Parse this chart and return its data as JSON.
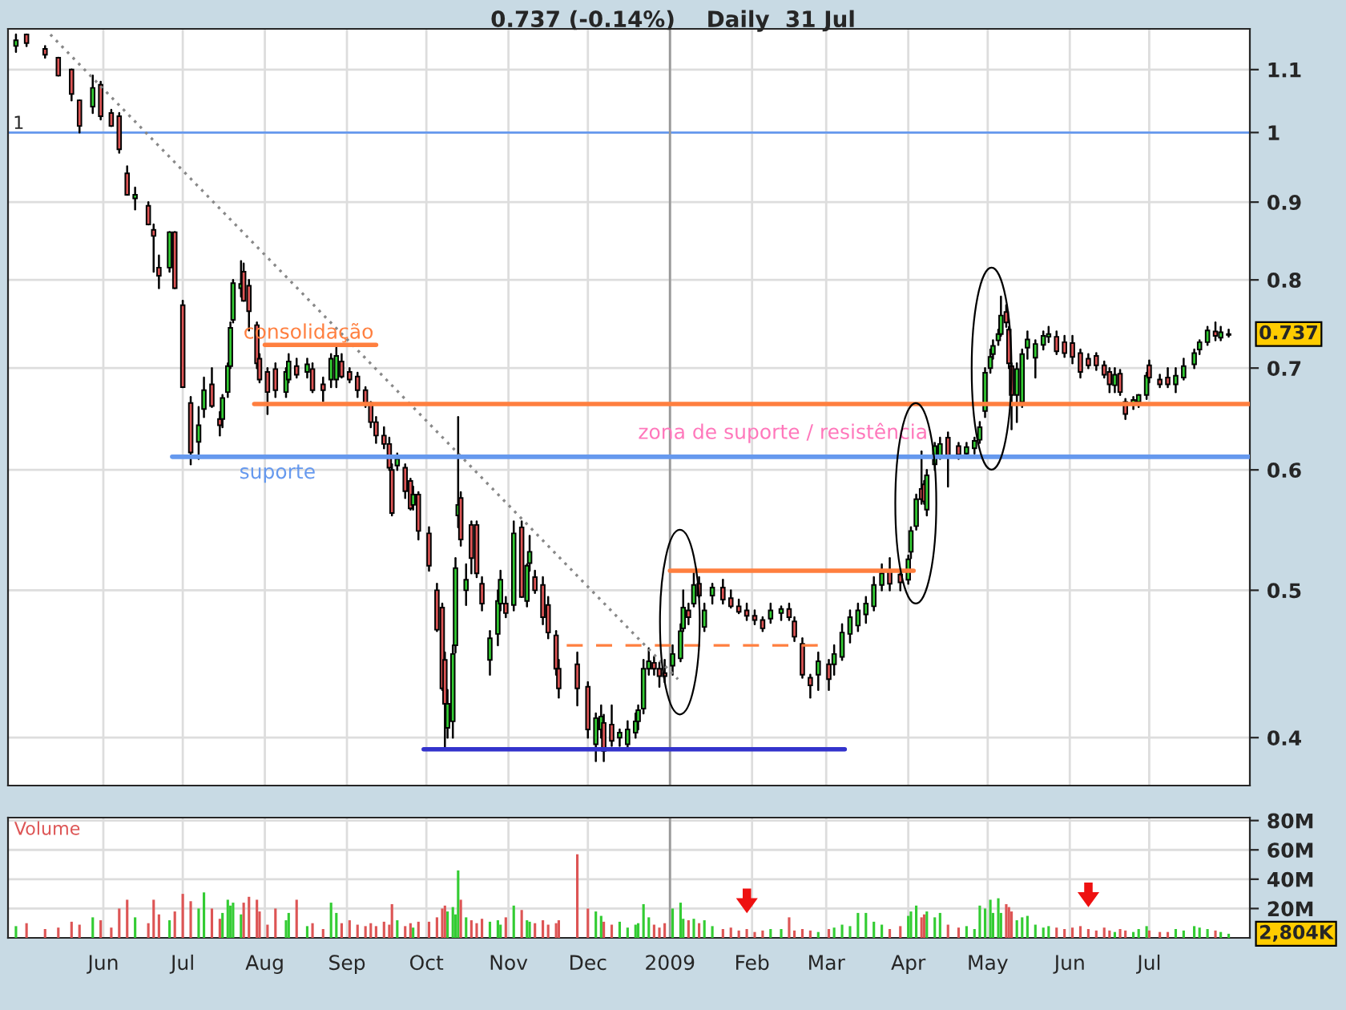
{
  "chart_data": [
    {
      "type": "candlestick",
      "title": "0.737 (-0.14%)    Daily  31 Jul",
      "x": [
        "2008-04-29",
        "2008-05-03",
        "2008-05-10",
        "2008-05-15",
        "2008-05-20",
        "2008-05-23",
        "2008-05-28",
        "2008-05-31",
        "2008-06-04",
        "2008-06-07",
        "2008-06-10",
        "2008-06-13",
        "2008-06-18",
        "2008-06-20",
        "2008-06-22",
        "2008-06-26",
        "2008-06-28",
        "2008-07-01",
        "2008-07-04",
        "2008-07-07",
        "2008-07-09",
        "2008-07-12",
        "2008-07-15",
        "2008-07-16",
        "2008-07-18",
        "2008-07-19",
        "2008-07-20",
        "2008-07-23",
        "2008-07-24",
        "2008-07-26",
        "2008-07-29",
        "2008-07-30",
        "2008-08-02",
        "2008-08-05",
        "2008-08-09",
        "2008-08-10",
        "2008-08-13",
        "2008-08-17",
        "2008-08-19",
        "2008-08-23",
        "2008-08-26",
        "2008-08-28",
        "2008-08-30",
        "2008-09-02",
        "2008-09-05",
        "2008-09-08",
        "2008-09-10",
        "2008-09-12",
        "2008-09-15",
        "2008-09-17",
        "2008-09-18",
        "2008-09-20",
        "2008-09-23",
        "2008-09-25",
        "2008-09-26",
        "2008-09-28",
        "2008-10-02",
        "2008-10-05",
        "2008-10-07",
        "2008-10-08",
        "2008-10-09",
        "2008-10-11",
        "2008-10-12",
        "2008-10-13",
        "2008-10-14",
        "2008-10-16",
        "2008-10-18",
        "2008-10-20",
        "2008-10-22",
        "2008-10-25",
        "2008-10-28",
        "2008-10-29",
        "2008-10-31",
        "2008-11-03",
        "2008-11-06",
        "2008-11-08",
        "2008-11-09",
        "2008-11-11",
        "2008-11-14",
        "2008-11-16",
        "2008-11-19",
        "2008-11-20",
        "2008-11-27",
        "2008-12-01",
        "2008-12-04",
        "2008-12-06",
        "2008-12-07",
        "2008-12-10",
        "2008-12-13",
        "2008-12-16",
        "2008-12-19",
        "2008-12-20",
        "2008-12-22",
        "2008-12-24",
        "2008-12-26",
        "2008-12-28",
        "2008-12-30",
        "2009-01-02",
        "2009-01-05",
        "2009-01-06",
        "2009-01-08",
        "2009-01-10",
        "2009-01-12",
        "2009-01-14",
        "2009-01-17",
        "2009-01-21",
        "2009-01-24",
        "2009-01-27",
        "2009-01-30",
        "2009-02-02",
        "2009-02-05",
        "2009-02-08",
        "2009-02-12",
        "2009-02-15",
        "2009-02-17",
        "2009-02-20",
        "2009-02-23",
        "2009-02-26",
        "2009-03-02",
        "2009-03-04",
        "2009-03-07",
        "2009-03-10",
        "2009-03-13",
        "2009-03-16",
        "2009-03-19",
        "2009-03-22",
        "2009-03-25",
        "2009-03-29",
        "2009-04-01",
        "2009-04-02",
        "2009-04-04",
        "2009-04-06",
        "2009-04-07",
        "2009-04-08",
        "2009-04-11",
        "2009-04-13",
        "2009-04-16",
        "2009-04-20",
        "2009-04-23",
        "2009-04-26",
        "2009-04-28",
        "2009-04-30",
        "2009-05-02",
        "2009-05-03",
        "2009-05-05",
        "2009-05-06",
        "2009-05-08",
        "2009-05-09",
        "2009-05-10",
        "2009-05-12",
        "2009-05-14",
        "2009-05-16",
        "2009-05-19",
        "2009-05-22",
        "2009-05-24",
        "2009-05-27",
        "2009-05-30",
        "2009-06-02",
        "2009-06-05",
        "2009-06-08",
        "2009-06-11",
        "2009-06-14",
        "2009-06-16",
        "2009-06-18",
        "2009-06-20",
        "2009-06-22",
        "2009-06-25",
        "2009-06-27",
        "2009-06-30",
        "2009-07-01",
        "2009-07-05",
        "2009-07-08",
        "2009-07-11",
        "2009-07-14",
        "2009-07-18",
        "2009-07-20",
        "2009-07-23",
        "2009-07-26",
        "2009-07-28",
        "2009-07-31"
      ],
      "ohlc": [
        [
          1.14,
          1.16,
          1.13,
          1.15
        ],
        [
          1.16,
          1.16,
          1.14,
          1.145
        ],
        [
          1.135,
          1.14,
          1.12,
          1.125
        ],
        [
          1.12,
          1.12,
          1.09,
          1.09
        ],
        [
          1.1,
          1.1,
          1.05,
          1.06
        ],
        [
          1.05,
          1.05,
          1.0,
          1.01
        ],
        [
          1.04,
          1.09,
          1.03,
          1.07
        ],
        [
          1.075,
          1.08,
          1.02,
          1.025
        ],
        [
          1.03,
          1.035,
          1.01,
          1.01
        ],
        [
          1.025,
          1.03,
          0.97,
          0.975
        ],
        [
          0.94,
          0.95,
          0.91,
          0.91
        ],
        [
          0.905,
          0.92,
          0.89,
          0.91
        ],
        [
          0.895,
          0.9,
          0.87,
          0.87
        ],
        [
          0.863,
          0.87,
          0.81,
          0.855
        ],
        [
          0.815,
          0.83,
          0.79,
          0.805
        ],
        [
          0.815,
          0.86,
          0.81,
          0.86
        ],
        [
          0.86,
          0.86,
          0.79,
          0.79
        ],
        [
          0.77,
          0.775,
          0.68,
          0.68
        ],
        [
          0.664,
          0.67,
          0.605,
          0.616
        ],
        [
          0.626,
          0.66,
          0.61,
          0.642
        ],
        [
          0.658,
          0.69,
          0.65,
          0.677
        ],
        [
          0.683,
          0.7,
          0.66,
          0.661
        ],
        [
          0.648,
          0.655,
          0.632,
          0.642
        ],
        [
          0.648,
          0.672,
          0.64,
          0.669
        ],
        [
          0.675,
          0.705,
          0.67,
          0.702
        ],
        [
          0.702,
          0.75,
          0.7,
          0.744
        ],
        [
          0.753,
          0.8,
          0.75,
          0.796
        ],
        [
          0.79,
          0.823,
          0.78,
          0.795
        ],
        [
          0.81,
          0.82,
          0.775,
          0.775
        ],
        [
          0.793,
          0.8,
          0.741,
          0.763
        ],
        [
          0.747,
          0.75,
          0.7,
          0.705
        ],
        [
          0.71,
          0.715,
          0.685,
          0.688
        ],
        [
          0.696,
          0.7,
          0.653,
          0.675
        ],
        [
          0.699,
          0.705,
          0.67,
          0.677
        ],
        [
          0.675,
          0.7,
          0.67,
          0.696
        ],
        [
          0.688,
          0.715,
          0.685,
          0.707
        ],
        [
          0.702,
          0.71,
          0.69,
          0.693
        ],
        [
          0.696,
          0.71,
          0.69,
          0.704
        ],
        [
          0.699,
          0.705,
          0.675,
          0.677
        ],
        [
          0.683,
          0.69,
          0.666,
          0.677
        ],
        [
          0.688,
          0.715,
          0.68,
          0.71
        ],
        [
          0.688,
          0.722,
          0.68,
          0.713
        ],
        [
          0.707,
          0.715,
          0.69,
          0.691
        ],
        [
          0.696,
          0.7,
          0.685,
          0.688
        ],
        [
          0.691,
          0.695,
          0.67,
          0.677
        ],
        [
          0.677,
          0.68,
          0.66,
          0.664
        ],
        [
          0.664,
          0.665,
          0.64,
          0.645
        ],
        [
          0.645,
          0.65,
          0.625,
          0.632
        ],
        [
          0.632,
          0.64,
          0.62,
          0.624
        ],
        [
          0.624,
          0.63,
          0.6,
          0.602
        ],
        [
          0.6,
          0.605,
          0.56,
          0.562
        ],
        [
          0.604,
          0.615,
          0.6,
          0.61
        ],
        [
          0.602,
          0.605,
          0.575,
          0.581
        ],
        [
          0.59,
          0.592,
          0.565,
          0.566
        ],
        [
          0.569,
          0.585,
          0.565,
          0.578
        ],
        [
          0.578,
          0.58,
          0.54,
          0.547
        ],
        [
          0.545,
          0.55,
          0.515,
          0.519
        ],
        [
          0.5,
          0.505,
          0.47,
          0.471
        ],
        [
          0.487,
          0.49,
          0.43,
          0.431
        ],
        [
          0.45,
          0.455,
          0.394,
          0.421
        ],
        [
          0.406,
          0.43,
          0.4,
          0.421
        ],
        [
          0.41,
          0.46,
          0.4,
          0.454
        ],
        [
          0.46,
          0.525,
          0.455,
          0.517
        ],
        [
          0.56,
          0.65,
          0.55,
          0.569
        ],
        [
          0.575,
          0.58,
          0.535,
          0.54
        ],
        [
          0.5,
          0.52,
          0.489,
          0.508
        ],
        [
          0.552,
          0.555,
          0.513,
          0.525
        ],
        [
          0.552,
          0.555,
          0.51,
          0.513
        ],
        [
          0.505,
          0.51,
          0.485,
          0.49
        ],
        [
          0.45,
          0.47,
          0.44,
          0.465
        ],
        [
          0.468,
          0.5,
          0.46,
          0.492
        ],
        [
          0.49,
          0.515,
          0.485,
          0.508
        ],
        [
          0.49,
          0.495,
          0.48,
          0.483
        ],
        [
          0.489,
          0.555,
          0.485,
          0.545
        ],
        [
          0.55,
          0.555,
          0.495,
          0.495
        ],
        [
          0.492,
          0.52,
          0.488,
          0.519
        ],
        [
          0.521,
          0.543,
          0.515,
          0.53
        ],
        [
          0.51,
          0.515,
          0.498,
          0.5
        ],
        [
          0.504,
          0.51,
          0.475,
          0.48
        ],
        [
          0.489,
          0.495,
          0.465,
          0.469
        ],
        [
          0.467,
          0.47,
          0.44,
          0.444
        ],
        [
          0.444,
          0.45,
          0.425,
          0.431
        ],
        [
          0.447,
          0.455,
          0.42,
          0.431
        ],
        [
          0.432,
          0.435,
          0.4,
          0.405
        ],
        [
          0.396,
          0.415,
          0.386,
          0.412
        ],
        [
          0.405,
          0.42,
          0.4,
          0.413
        ],
        [
          0.409,
          0.414,
          0.386,
          0.392
        ],
        [
          0.408,
          0.42,
          0.395,
          0.398
        ],
        [
          0.4,
          0.405,
          0.395,
          0.403
        ],
        [
          0.396,
          0.41,
          0.394,
          0.405
        ],
        [
          0.403,
          0.415,
          0.4,
          0.41
        ],
        [
          0.41,
          0.42,
          0.405,
          0.417
        ],
        [
          0.418,
          0.45,
          0.415,
          0.444
        ],
        [
          0.444,
          0.458,
          0.44,
          0.449
        ],
        [
          0.448,
          0.452,
          0.44,
          0.444
        ],
        [
          0.444,
          0.448,
          0.432,
          0.439
        ],
        [
          0.441,
          0.45,
          0.435,
          0.439
        ],
        [
          0.446,
          0.46,
          0.44,
          0.454
        ],
        [
          0.451,
          0.475,
          0.449,
          0.47
        ],
        [
          0.472,
          0.5,
          0.47,
          0.487
        ],
        [
          0.485,
          0.49,
          0.475,
          0.48
        ],
        [
          0.49,
          0.515,
          0.488,
          0.504
        ],
        [
          0.505,
          0.51,
          0.495,
          0.496
        ],
        [
          0.473,
          0.49,
          0.47,
          0.485
        ],
        [
          0.496,
          0.505,
          0.49,
          0.502
        ],
        [
          0.502,
          0.508,
          0.49,
          0.493
        ],
        [
          0.494,
          0.5,
          0.487,
          0.488
        ],
        [
          0.488,
          0.493,
          0.483,
          0.484
        ],
        [
          0.485,
          0.49,
          0.478,
          0.481
        ],
        [
          0.481,
          0.485,
          0.475,
          0.478
        ],
        [
          0.478,
          0.48,
          0.47,
          0.472
        ],
        [
          0.479,
          0.49,
          0.476,
          0.485
        ],
        [
          0.483,
          0.488,
          0.478,
          0.486
        ],
        [
          0.486,
          0.49,
          0.478,
          0.48
        ],
        [
          0.477,
          0.48,
          0.463,
          0.466
        ],
        [
          0.461,
          0.465,
          0.438,
          0.44
        ],
        [
          0.438,
          0.44,
          0.425,
          0.433
        ],
        [
          0.44,
          0.455,
          0.43,
          0.449
        ],
        [
          0.447,
          0.45,
          0.43,
          0.437
        ],
        [
          0.447,
          0.46,
          0.44,
          0.454
        ],
        [
          0.452,
          0.475,
          0.45,
          0.469
        ],
        [
          0.468,
          0.485,
          0.462,
          0.48
        ],
        [
          0.474,
          0.49,
          0.47,
          0.485
        ],
        [
          0.482,
          0.495,
          0.476,
          0.49
        ],
        [
          0.488,
          0.51,
          0.485,
          0.504
        ],
        [
          0.504,
          0.52,
          0.5,
          0.513
        ],
        [
          0.515,
          0.525,
          0.5,
          0.505
        ],
        [
          0.512,
          0.516,
          0.5,
          0.506
        ],
        [
          0.508,
          0.527,
          0.505,
          0.524
        ],
        [
          0.53,
          0.55,
          0.525,
          0.547
        ],
        [
          0.551,
          0.578,
          0.548,
          0.574
        ],
        [
          0.583,
          0.617,
          0.57,
          0.574
        ],
        [
          0.587,
          0.59,
          0.57,
          0.572
        ],
        [
          0.565,
          0.6,
          0.56,
          0.595
        ],
        [
          0.605,
          0.625,
          0.6,
          0.622
        ],
        [
          0.612,
          0.63,
          0.61,
          0.624
        ],
        [
          0.63,
          0.635,
          0.585,
          0.613
        ],
        [
          0.622,
          0.625,
          0.61,
          0.614
        ],
        [
          0.615,
          0.625,
          0.612,
          0.621
        ],
        [
          0.62,
          0.63,
          0.615,
          0.627
        ],
        [
          0.628,
          0.645,
          0.625,
          0.64
        ],
        [
          0.656,
          0.7,
          0.65,
          0.695
        ],
        [
          0.7,
          0.72,
          0.695,
          0.712
        ],
        [
          0.715,
          0.73,
          0.71,
          0.724
        ],
        [
          0.73,
          0.742,
          0.725,
          0.737
        ],
        [
          0.737,
          0.78,
          0.735,
          0.758
        ],
        [
          0.762,
          0.77,
          0.745,
          0.75
        ],
        [
          0.742,
          0.745,
          0.7,
          0.705
        ],
        [
          0.702,
          0.705,
          0.638,
          0.672
        ],
        [
          0.672,
          0.705,
          0.645,
          0.699
        ],
        [
          0.665,
          0.72,
          0.66,
          0.715
        ],
        [
          0.722,
          0.74,
          0.71,
          0.731
        ],
        [
          0.711,
          0.73,
          0.69,
          0.726
        ],
        [
          0.725,
          0.74,
          0.72,
          0.735
        ],
        [
          0.734,
          0.745,
          0.728,
          0.737
        ],
        [
          0.734,
          0.74,
          0.715,
          0.718
        ],
        [
          0.728,
          0.735,
          0.712,
          0.716
        ],
        [
          0.727,
          0.735,
          0.705,
          0.712
        ],
        [
          0.716,
          0.72,
          0.69,
          0.696
        ],
        [
          0.71,
          0.715,
          0.7,
          0.703
        ],
        [
          0.713,
          0.716,
          0.698,
          0.703
        ],
        [
          0.703,
          0.707,
          0.69,
          0.693
        ],
        [
          0.696,
          0.7,
          0.675,
          0.683
        ],
        [
          0.682,
          0.7,
          0.675,
          0.693
        ],
        [
          0.694,
          0.698,
          0.672,
          0.675
        ],
        [
          0.665,
          0.668,
          0.648,
          0.653
        ],
        [
          0.663,
          0.67,
          0.658,
          0.667
        ],
        [
          0.665,
          0.672,
          0.66,
          0.672
        ],
        [
          0.672,
          0.695,
          0.668,
          0.692
        ],
        [
          0.703,
          0.708,
          0.685,
          0.69
        ],
        [
          0.688,
          0.693,
          0.68,
          0.683
        ],
        [
          0.69,
          0.7,
          0.68,
          0.683
        ],
        [
          0.683,
          0.7,
          0.675,
          0.692
        ],
        [
          0.69,
          0.71,
          0.688,
          0.702
        ],
        [
          0.704,
          0.72,
          0.7,
          0.716
        ],
        [
          0.72,
          0.73,
          0.715,
          0.728
        ],
        [
          0.728,
          0.745,
          0.725,
          0.741
        ],
        [
          0.74,
          0.75,
          0.73,
          0.735
        ],
        [
          0.733,
          0.745,
          0.73,
          0.739
        ],
        [
          0.736,
          0.742,
          0.734,
          0.737
        ]
      ],
      "colors": [
        "#33cc33",
        "#dd5555",
        "#dd5555",
        "#dd5555",
        "#dd5555",
        "#dd5555",
        "#33cc33",
        "#dd5555",
        "#dd5555",
        "#dd5555",
        "#dd5555",
        "#33cc33",
        "#dd5555",
        "#dd5555",
        "#dd5555",
        "#33cc33",
        "#dd5555",
        "#dd5555",
        "#dd5555",
        "#33cc33",
        "#33cc33",
        "#dd5555",
        "#dd5555",
        "#33cc33",
        "#33cc33",
        "#33cc33",
        "#33cc33",
        "#33cc33",
        "#dd5555",
        "#dd5555",
        "#dd5555",
        "#dd5555",
        "#dd5555",
        "#dd5555",
        "#33cc33",
        "#33cc33",
        "#dd5555",
        "#33cc33",
        "#dd5555",
        "#dd5555",
        "#33cc33",
        "#33cc33",
        "#dd5555",
        "#dd5555",
        "#dd5555",
        "#dd5555",
        "#dd5555",
        "#dd5555",
        "#dd5555",
        "#dd5555",
        "#dd5555",
        "#33cc33",
        "#dd5555",
        "#dd5555",
        "#33cc33",
        "#dd5555",
        "#dd5555",
        "#dd5555",
        "#dd5555",
        "#dd5555",
        "#33cc33",
        "#33cc33",
        "#33cc33",
        "#33cc33",
        "#dd5555",
        "#33cc33",
        "#dd5555",
        "#dd5555",
        "#dd5555",
        "#33cc33",
        "#33cc33",
        "#33cc33",
        "#dd5555",
        "#33cc33",
        "#dd5555",
        "#33cc33",
        "#33cc33",
        "#dd5555",
        "#dd5555",
        "#dd5555",
        "#dd5555",
        "#dd5555",
        "#dd5555",
        "#dd5555",
        "#33cc33",
        "#33cc33",
        "#dd5555",
        "#dd5555",
        "#33cc33",
        "#33cc33",
        "#33cc33",
        "#33cc33",
        "#33cc33",
        "#33cc33",
        "#dd5555",
        "#dd5555",
        "#dd5555",
        "#33cc33",
        "#33cc33",
        "#33cc33",
        "#dd5555",
        "#33cc33",
        "#dd5555",
        "#33cc33",
        "#33cc33",
        "#dd5555",
        "#dd5555",
        "#dd5555",
        "#dd5555",
        "#dd5555",
        "#dd5555",
        "#33cc33",
        "#33cc33",
        "#dd5555",
        "#dd5555",
        "#dd5555",
        "#dd5555",
        "#33cc33",
        "#dd5555",
        "#33cc33",
        "#33cc33",
        "#33cc33",
        "#33cc33",
        "#33cc33",
        "#33cc33",
        "#33cc33",
        "#dd5555",
        "#dd5555",
        "#33cc33",
        "#33cc33",
        "#33cc33",
        "#dd5555",
        "#dd5555",
        "#33cc33",
        "#33cc33",
        "#33cc33",
        "#dd5555",
        "#dd5555",
        "#33cc33",
        "#33cc33",
        "#33cc33",
        "#33cc33",
        "#33cc33",
        "#33cc33",
        "#33cc33",
        "#33cc33",
        "#dd5555",
        "#dd5555",
        "#dd5555",
        "#33cc33",
        "#33cc33",
        "#33cc33",
        "#33cc33",
        "#33cc33",
        "#33cc33",
        "#dd5555",
        "#dd5555",
        "#dd5555",
        "#dd5555",
        "#dd5555",
        "#dd5555",
        "#dd5555",
        "#dd5555",
        "#33cc33",
        "#dd5555",
        "#dd5555",
        "#33cc33",
        "#33cc33",
        "#33cc33",
        "#dd5555",
        "#dd5555",
        "#dd5555",
        "#33cc33",
        "#33cc33",
        "#33cc33",
        "#33cc33",
        "#33cc33",
        "#dd5555",
        "#33cc33",
        "#33cc33"
      ],
      "series": [
        {
          "type": "line",
          "x": [
            "2008-05-12",
            "2009-01-04"
          ],
          "values": [
            1.16,
            0.437
          ],
          "color": "#888888",
          "line_style": "dotted"
        },
        {
          "type": "line",
          "x": [
            "2008-08-01",
            "2008-09-12"
          ],
          "values": [
            0.725,
            0.725
          ],
          "color": "#ff7f3f",
          "line_style": "solid"
        },
        {
          "type": "line",
          "x": [
            "2008-07-28",
            "2009-08-08"
          ],
          "values": [
            0.663,
            0.663
          ],
          "color": "#ff7f3f",
          "line_style": "solid"
        },
        {
          "type": "line",
          "x": [
            "2008-06-27",
            "2009-08-08"
          ],
          "values": [
            0.612,
            0.612
          ],
          "color": "#6699ee",
          "line_style": "solid"
        },
        {
          "type": "line",
          "x": [
            "2009-01-01",
            "2009-04-03"
          ],
          "values": [
            0.515,
            0.515
          ],
          "color": "#ff7f3f",
          "line_style": "solid"
        },
        {
          "type": "line",
          "x": [
            "2008-11-23",
            "2009-02-26"
          ],
          "values": [
            0.46,
            0.46
          ],
          "color": "#ff7f3f",
          "line_style": "dashed"
        },
        {
          "type": "line",
          "x": [
            "2008-09-30",
            "2009-03-08"
          ],
          "values": [
            0.393,
            0.393
          ],
          "color": "#3333cc",
          "line_style": "solid"
        }
      ],
      "ref_lines": [
        {
          "axis": "y",
          "value": 1,
          "label": "1",
          "color": "#6699ee"
        },
        {
          "axis": "x",
          "value": "2009-01-01",
          "color": "#999999"
        }
      ],
      "annotations": [
        "consolidação",
        "suporte",
        "zona de suporte / resistência",
        {
          "text": "0.737",
          "x": "2009-07-31",
          "y": 0.737
        }
      ],
      "log": true,
      "xlim": [
        "2008-04-26",
        "2009-08-08"
      ],
      "ylim": [
        0.372,
        1.17
      ],
      "xticks": [
        {
          "value": "2008-06-01",
          "label": null
        },
        {
          "value": "2008-07-01",
          "label": null
        },
        {
          "value": "2008-08-01",
          "label": null
        },
        {
          "value": "2008-09-01",
          "label": null
        },
        {
          "value": "2008-10-01",
          "label": null
        },
        {
          "value": "2008-11-01",
          "label": null
        },
        {
          "value": "2008-12-01",
          "label": null
        },
        {
          "value": "2009-01-01",
          "label": null
        },
        {
          "value": "2009-02-01",
          "label": null
        },
        {
          "value": "2009-03-01",
          "label": null
        },
        {
          "value": "2009-04-01",
          "label": null
        },
        {
          "value": "2009-05-01",
          "label": null
        },
        {
          "value": "2009-06-01",
          "label": null
        },
        {
          "value": "2009-07-01",
          "label": null
        }
      ],
      "yticks": [
        0.4,
        0.5,
        0.6,
        0.7,
        0.8,
        0.9,
        1,
        1.1
      ],
      "tick_labels": "y",
      "grid": true
    },
    {
      "type": "bar",
      "title": "Volume",
      "x": [
        "2008-04-29",
        "2008-05-03",
        "2008-05-10",
        "2008-05-15",
        "2008-05-20",
        "2008-05-23",
        "2008-05-28",
        "2008-05-31",
        "2008-06-04",
        "2008-06-07",
        "2008-06-10",
        "2008-06-13",
        "2008-06-18",
        "2008-06-20",
        "2008-06-22",
        "2008-06-26",
        "2008-06-28",
        "2008-07-01",
        "2008-07-04",
        "2008-07-07",
        "2008-07-09",
        "2008-07-12",
        "2008-07-15",
        "2008-07-16",
        "2008-07-18",
        "2008-07-19",
        "2008-07-20",
        "2008-07-23",
        "2008-07-24",
        "2008-07-26",
        "2008-07-29",
        "2008-07-30",
        "2008-08-02",
        "2008-08-05",
        "2008-08-09",
        "2008-08-10",
        "2008-08-13",
        "2008-08-17",
        "2008-08-19",
        "2008-08-23",
        "2008-08-26",
        "2008-08-28",
        "2008-08-30",
        "2008-09-02",
        "2008-09-05",
        "2008-09-08",
        "2008-09-10",
        "2008-09-12",
        "2008-09-15",
        "2008-09-17",
        "2008-09-18",
        "2008-09-20",
        "2008-09-23",
        "2008-09-25",
        "2008-09-26",
        "2008-09-28",
        "2008-10-02",
        "2008-10-05",
        "2008-10-07",
        "2008-10-08",
        "2008-10-09",
        "2008-10-11",
        "2008-10-12",
        "2008-10-13",
        "2008-10-14",
        "2008-10-16",
        "2008-10-18",
        "2008-10-20",
        "2008-10-22",
        "2008-10-25",
        "2008-10-28",
        "2008-10-29",
        "2008-10-31",
        "2008-11-03",
        "2008-11-06",
        "2008-11-08",
        "2008-11-09",
        "2008-11-11",
        "2008-11-14",
        "2008-11-16",
        "2008-11-19",
        "2008-11-20",
        "2008-11-27",
        "2008-12-01",
        "2008-12-04",
        "2008-12-06",
        "2008-12-07",
        "2008-12-10",
        "2008-12-13",
        "2008-12-16",
        "2008-12-19",
        "2008-12-20",
        "2008-12-22",
        "2008-12-24",
        "2008-12-26",
        "2008-12-28",
        "2008-12-30",
        "2009-01-02",
        "2009-01-05",
        "2009-01-06",
        "2009-01-08",
        "2009-01-10",
        "2009-01-12",
        "2009-01-14",
        "2009-01-17",
        "2009-01-21",
        "2009-01-24",
        "2009-01-27",
        "2009-01-30",
        "2009-02-02",
        "2009-02-05",
        "2009-02-08",
        "2009-02-12",
        "2009-02-15",
        "2009-02-17",
        "2009-02-20",
        "2009-02-23",
        "2009-02-26",
        "2009-03-02",
        "2009-03-04",
        "2009-03-07",
        "2009-03-10",
        "2009-03-13",
        "2009-03-16",
        "2009-03-19",
        "2009-03-22",
        "2009-03-25",
        "2009-03-29",
        "2009-04-01",
        "2009-04-02",
        "2009-04-04",
        "2009-04-06",
        "2009-04-07",
        "2009-04-08",
        "2009-04-11",
        "2009-04-13",
        "2009-04-16",
        "2009-04-20",
        "2009-04-23",
        "2009-04-26",
        "2009-04-28",
        "2009-04-30",
        "2009-05-02",
        "2009-05-03",
        "2009-05-05",
        "2009-05-06",
        "2009-05-08",
        "2009-05-09",
        "2009-05-10",
        "2009-05-12",
        "2009-05-14",
        "2009-05-16",
        "2009-05-19",
        "2009-05-22",
        "2009-05-24",
        "2009-05-27",
        "2009-05-30",
        "2009-06-02",
        "2009-06-05",
        "2009-06-08",
        "2009-06-11",
        "2009-06-14",
        "2009-06-16",
        "2009-06-18",
        "2009-06-20",
        "2009-06-22",
        "2009-06-25",
        "2009-06-27",
        "2009-06-30",
        "2009-07-01",
        "2009-07-05",
        "2009-07-08",
        "2009-07-11",
        "2009-07-14",
        "2009-07-18",
        "2009-07-20",
        "2009-07-23",
        "2009-07-26",
        "2009-07-28",
        "2009-07-31"
      ],
      "values": [
        8,
        10,
        6,
        7,
        11,
        9,
        14,
        12,
        7,
        20,
        26,
        14,
        10,
        26,
        16,
        12,
        18,
        30,
        25,
        20,
        31,
        20,
        13,
        17,
        26,
        22,
        24,
        16,
        24,
        28,
        26,
        18,
        9,
        20,
        12,
        17,
        26,
        8,
        10,
        6,
        24,
        17,
        10,
        12,
        9,
        8,
        10,
        8,
        11,
        9,
        23,
        12,
        8,
        10,
        7,
        11,
        11,
        14,
        20,
        22,
        18,
        21,
        16,
        46,
        26,
        14,
        12,
        10,
        13,
        11,
        12,
        9,
        14,
        22,
        19,
        12,
        11,
        10,
        12,
        9,
        10,
        12,
        57,
        20,
        18,
        15,
        11,
        9,
        11,
        7,
        9,
        10,
        23,
        14,
        9,
        7,
        10,
        20,
        24,
        13,
        12,
        13,
        10,
        12,
        8,
        6,
        7,
        5,
        6,
        4,
        5,
        6,
        6,
        14,
        5,
        6,
        5,
        4,
        6,
        7,
        9,
        8,
        17,
        17,
        11,
        9,
        6,
        8,
        15,
        18,
        22,
        14,
        16,
        18,
        14,
        17,
        9,
        7,
        8,
        6,
        22,
        20,
        26,
        17,
        27,
        17,
        23,
        21,
        18,
        12,
        14,
        15,
        9,
        7,
        8,
        7,
        6,
        7,
        8,
        6,
        5,
        7,
        5,
        4,
        6,
        5,
        4,
        6,
        8,
        5,
        4,
        4,
        6,
        5,
        8,
        7,
        6,
        5,
        4,
        2.8
      ],
      "colors": [
        "#33cc33",
        "#dd5555",
        "#dd5555",
        "#dd5555",
        "#dd5555",
        "#dd5555",
        "#33cc33",
        "#dd5555",
        "#dd5555",
        "#dd5555",
        "#dd5555",
        "#33cc33",
        "#dd5555",
        "#dd5555",
        "#dd5555",
        "#33cc33",
        "#dd5555",
        "#dd5555",
        "#dd5555",
        "#33cc33",
        "#33cc33",
        "#dd5555",
        "#dd5555",
        "#33cc33",
        "#33cc33",
        "#33cc33",
        "#33cc33",
        "#33cc33",
        "#dd5555",
        "#dd5555",
        "#dd5555",
        "#dd5555",
        "#dd5555",
        "#dd5555",
        "#33cc33",
        "#33cc33",
        "#dd5555",
        "#33cc33",
        "#dd5555",
        "#dd5555",
        "#33cc33",
        "#33cc33",
        "#dd5555",
        "#dd5555",
        "#dd5555",
        "#dd5555",
        "#dd5555",
        "#dd5555",
        "#dd5555",
        "#dd5555",
        "#dd5555",
        "#33cc33",
        "#dd5555",
        "#dd5555",
        "#33cc33",
        "#dd5555",
        "#dd5555",
        "#dd5555",
        "#dd5555",
        "#dd5555",
        "#33cc33",
        "#33cc33",
        "#33cc33",
        "#33cc33",
        "#dd5555",
        "#33cc33",
        "#dd5555",
        "#dd5555",
        "#dd5555",
        "#33cc33",
        "#33cc33",
        "#33cc33",
        "#dd5555",
        "#33cc33",
        "#dd5555",
        "#33cc33",
        "#33cc33",
        "#dd5555",
        "#dd5555",
        "#dd5555",
        "#dd5555",
        "#dd5555",
        "#dd5555",
        "#dd5555",
        "#33cc33",
        "#33cc33",
        "#dd5555",
        "#dd5555",
        "#33cc33",
        "#33cc33",
        "#33cc33",
        "#33cc33",
        "#33cc33",
        "#33cc33",
        "#dd5555",
        "#dd5555",
        "#dd5555",
        "#33cc33",
        "#33cc33",
        "#33cc33",
        "#dd5555",
        "#33cc33",
        "#dd5555",
        "#33cc33",
        "#33cc33",
        "#dd5555",
        "#dd5555",
        "#dd5555",
        "#dd5555",
        "#dd5555",
        "#dd5555",
        "#33cc33",
        "#33cc33",
        "#dd5555",
        "#dd5555",
        "#dd5555",
        "#dd5555",
        "#33cc33",
        "#dd5555",
        "#33cc33",
        "#33cc33",
        "#33cc33",
        "#33cc33",
        "#33cc33",
        "#33cc33",
        "#33cc33",
        "#dd5555",
        "#dd5555",
        "#33cc33",
        "#33cc33",
        "#33cc33",
        "#dd5555",
        "#dd5555",
        "#33cc33",
        "#33cc33",
        "#33cc33",
        "#dd5555",
        "#dd5555",
        "#33cc33",
        "#33cc33",
        "#33cc33",
        "#33cc33",
        "#33cc33",
        "#33cc33",
        "#33cc33",
        "#33cc33",
        "#dd5555",
        "#dd5555",
        "#dd5555",
        "#33cc33",
        "#33cc33",
        "#33cc33",
        "#33cc33",
        "#33cc33",
        "#33cc33",
        "#dd5555",
        "#dd5555",
        "#dd5555",
        "#dd5555",
        "#dd5555",
        "#dd5555",
        "#dd5555",
        "#dd5555",
        "#33cc33",
        "#dd5555",
        "#dd5555",
        "#33cc33",
        "#33cc33",
        "#33cc33",
        "#dd5555",
        "#dd5555",
        "#dd5555",
        "#33cc33",
        "#33cc33",
        "#33cc33",
        "#33cc33",
        "#33cc33",
        "#dd5555",
        "#33cc33",
        "#33cc33"
      ],
      "ref_lines": [
        {
          "axis": "x",
          "value": "2009-01-01",
          "color": "#999999"
        }
      ],
      "annotations": [
        {
          "text": "2,804K",
          "x": "2009-07-31",
          "y": 2.8
        }
      ],
      "xlim": [
        "2008-04-26",
        "2009-08-08"
      ],
      "ylim": [
        0,
        82
      ],
      "xticks": [
        {
          "value": "2008-06-01",
          "label": "Jun"
        },
        {
          "value": "2008-07-01",
          "label": "Jul"
        },
        {
          "value": "2008-08-01",
          "label": "Aug"
        },
        {
          "value": "2008-09-01",
          "label": "Sep"
        },
        {
          "value": "2008-10-01",
          "label": "Oct"
        },
        {
          "value": "2008-11-01",
          "label": "Nov"
        },
        {
          "value": "2008-12-01",
          "label": "Dec"
        },
        {
          "value": "2009-01-01",
          "label": "2009"
        },
        {
          "value": "2009-02-01",
          "label": "Feb"
        },
        {
          "value": "2009-03-01",
          "label": "Mar"
        },
        {
          "value": "2009-04-01",
          "label": "Apr"
        },
        {
          "value": "2009-05-01",
          "label": "May"
        },
        {
          "value": "2009-06-01",
          "label": "Jun"
        },
        {
          "value": "2009-07-01",
          "label": "Jul"
        }
      ],
      "yticks": [
        {
          "value": 20,
          "label": "20M"
        },
        {
          "value": 40,
          "label": "40M"
        },
        {
          "value": 60,
          "label": "60M"
        },
        {
          "value": 80,
          "label": "80M"
        }
      ],
      "grid": true
    }
  ]
}
